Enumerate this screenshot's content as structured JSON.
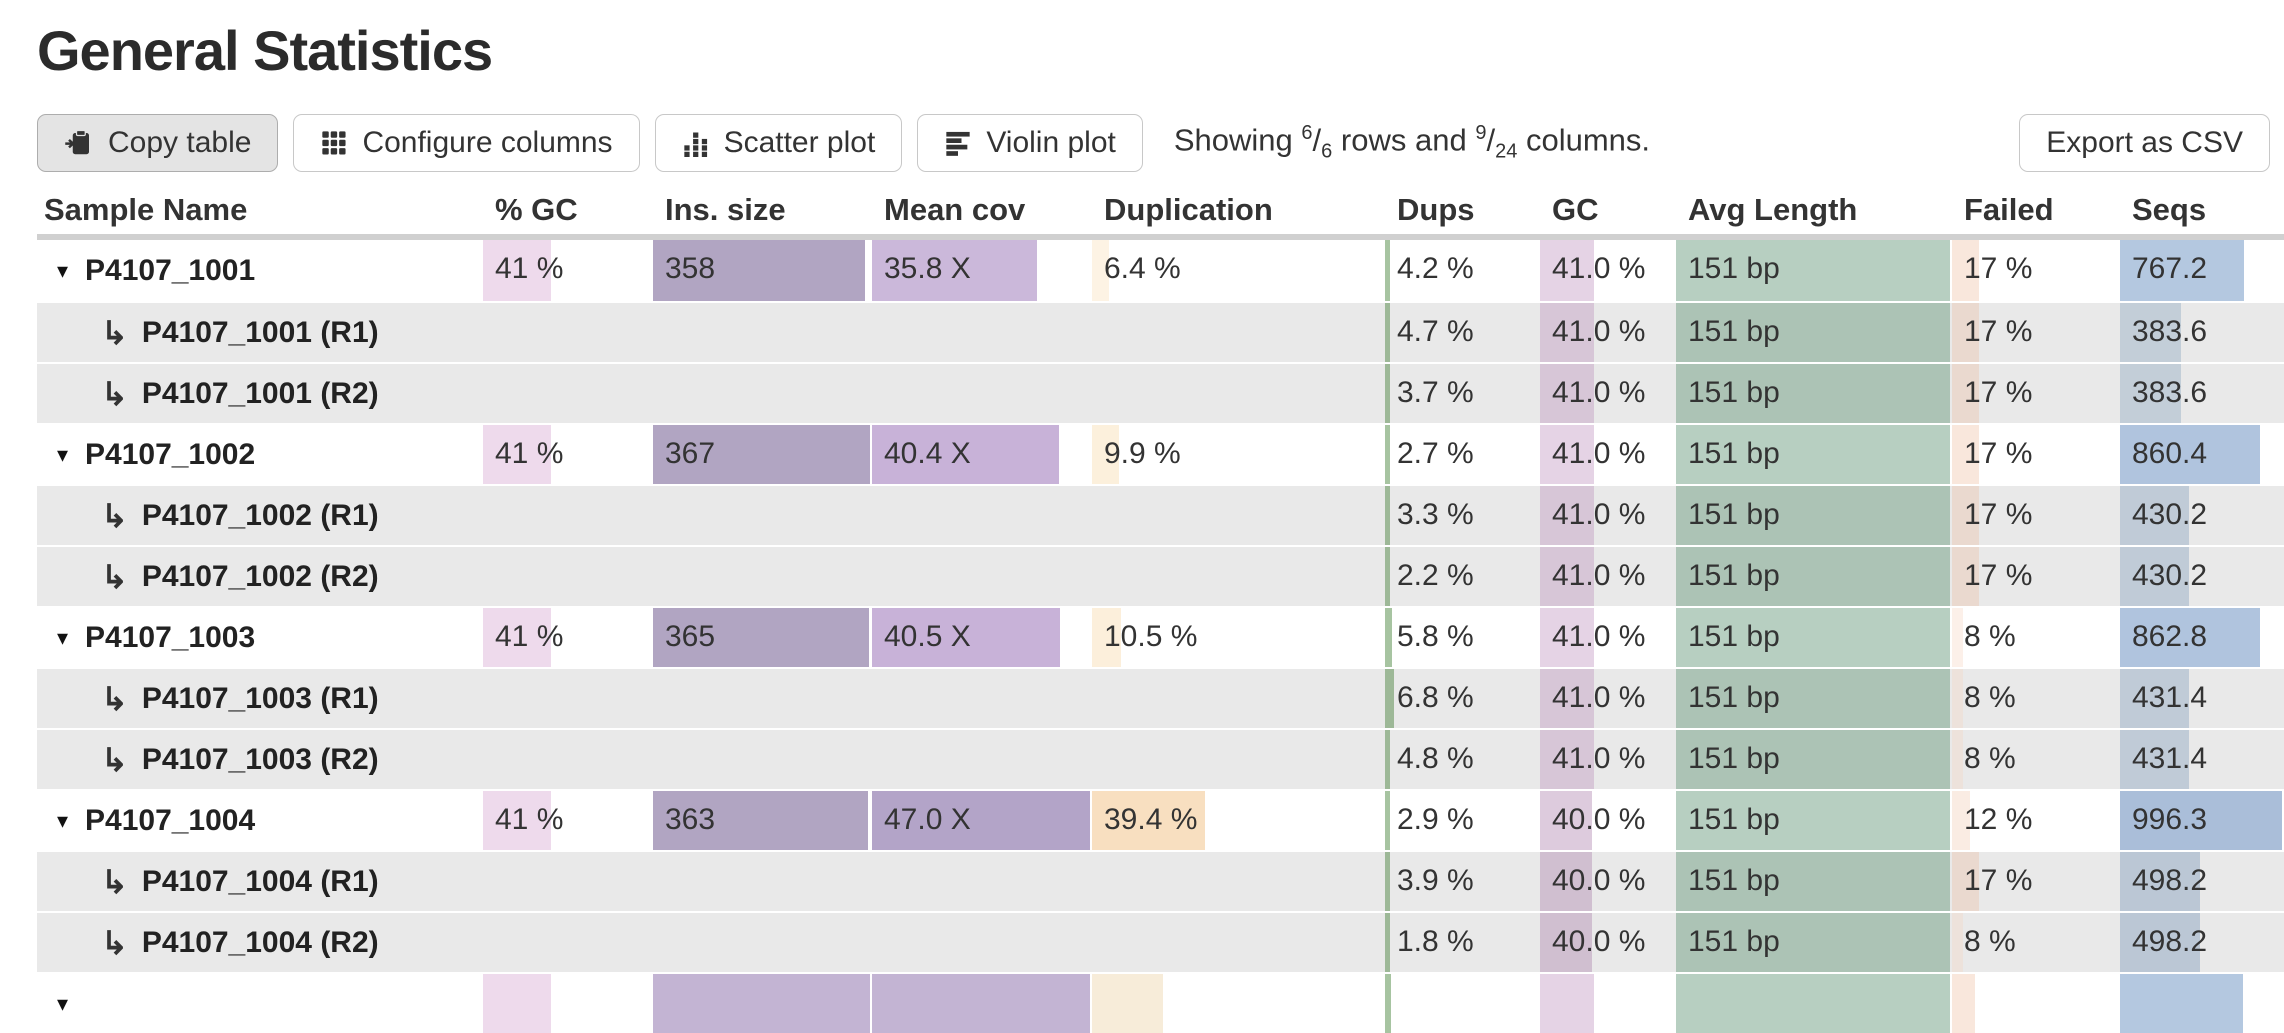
{
  "title": "General Statistics",
  "toolbar": {
    "copy_table": "Copy table",
    "configure_columns": "Configure columns",
    "scatter_plot": "Scatter plot",
    "violin_plot": "Violin plot",
    "export_csv": "Export as CSV",
    "showing": {
      "prefix": "Showing",
      "rows_num": "6",
      "slash1": "/",
      "rows_den": "6",
      "mid": "rows and",
      "cols_num": "9",
      "slash2": "/",
      "cols_den": "24",
      "suffix": "columns."
    }
  },
  "icons": {
    "copy": "clipboard-arrow-icon",
    "configure": "grid-3x3-icon",
    "scatter": "dot-columns-icon",
    "violin": "align-left-bars-icon",
    "expand_caret": "▾",
    "subrow_arrow": "↳"
  },
  "colors": {
    "row_alt_bg": "#e9e9e9",
    "header_divider": "#d0d0d0",
    "pct_gc_bar": "#eedaec",
    "ins_size_bar": "#b1a5c2",
    "mean_cov_bar": "#cbb8da",
    "duplication_bar": "#f8dfc0",
    "dups_bar": "#a7c4a1",
    "gc_bar": "#e5d3e5",
    "avg_length_bar": "#b7cfc1",
    "failed_bar": "#f9e7dc",
    "seqs_bar": "#b4c8e0"
  },
  "table": {
    "columns": [
      {
        "key": "sample",
        "label": "Sample Name"
      },
      {
        "key": "pct_gc",
        "label": "% GC"
      },
      {
        "key": "ins_size",
        "label": "Ins. size"
      },
      {
        "key": "mean_cov",
        "label": "Mean cov"
      },
      {
        "key": "duplication",
        "label": "Duplication"
      },
      {
        "key": "dups",
        "label": "Dups"
      },
      {
        "key": "gc",
        "label": "GC"
      },
      {
        "key": "avg_length",
        "label": "Avg Length"
      },
      {
        "key": "failed",
        "label": "Failed"
      },
      {
        "key": "seqs",
        "label": "Seqs"
      }
    ],
    "rows": [
      {
        "k": "main",
        "name": "P4107_1001",
        "cells": {
          "pct_gc": {
            "t": "41 %",
            "f": 0.41,
            "c": "#eedaec"
          },
          "ins_size": {
            "t": "358",
            "f": 0.975,
            "c": "#b1a5c2"
          },
          "mean_cov": {
            "t": "35.8 X",
            "f": 0.76,
            "c": "#cbb8da"
          },
          "duplication": {
            "t": "6.4 %",
            "f": 0.064,
            "c": "#fdf3e4"
          },
          "dups": {
            "t": "4.2 %",
            "f": 0.042,
            "c": "#a7c4a1"
          },
          "gc": {
            "t": "41.0 %",
            "f": 0.41,
            "c": "#e5d3e5"
          },
          "avg_length": {
            "t": "151 bp",
            "f": 1,
            "c": "#b7cfc1"
          },
          "failed": {
            "t": "17 %",
            "f": 0.17,
            "c": "#f9e7dc"
          },
          "seqs": {
            "t": "767.2",
            "f": 0.77,
            "c": "#b4c8e0"
          }
        }
      },
      {
        "k": "sub",
        "name": "P4107_1001 (R1)",
        "cells": {
          "dups": {
            "t": "4.7 %",
            "f": 0.047,
            "c": "#a7c4a1"
          },
          "gc": {
            "t": "41.0 %",
            "f": 0.41,
            "c": "#e5d3e5"
          },
          "avg_length": {
            "t": "151 bp",
            "f": 1,
            "c": "#b7cfc1"
          },
          "failed": {
            "t": "17 %",
            "f": 0.17,
            "c": "#f9e7dc"
          },
          "seqs": {
            "t": "383.6",
            "f": 0.385,
            "c": "#cfdbe6"
          }
        }
      },
      {
        "k": "sub",
        "name": "P4107_1001 (R2)",
        "cells": {
          "dups": {
            "t": "3.7 %",
            "f": 0.037,
            "c": "#a7c4a1"
          },
          "gc": {
            "t": "41.0 %",
            "f": 0.41,
            "c": "#e5d3e5"
          },
          "avg_length": {
            "t": "151 bp",
            "f": 1,
            "c": "#b7cfc1"
          },
          "failed": {
            "t": "17 %",
            "f": 0.17,
            "c": "#f9e7dc"
          },
          "seqs": {
            "t": "383.6",
            "f": 0.385,
            "c": "#cfdbe6"
          }
        }
      },
      {
        "k": "main",
        "name": "P4107_1002",
        "cells": {
          "pct_gc": {
            "t": "41 %",
            "f": 0.41,
            "c": "#eedaec"
          },
          "ins_size": {
            "t": "367",
            "f": 1,
            "c": "#b1a5c2"
          },
          "mean_cov": {
            "t": "40.4 X",
            "f": 0.86,
            "c": "#c8b2d8"
          },
          "duplication": {
            "t": "9.9 %",
            "f": 0.099,
            "c": "#fcf0dc"
          },
          "dups": {
            "t": "2.7 %",
            "f": 0.027,
            "c": "#a7c4a1"
          },
          "gc": {
            "t": "41.0 %",
            "f": 0.41,
            "c": "#e5d3e5"
          },
          "avg_length": {
            "t": "151 bp",
            "f": 1,
            "c": "#b7cfc1"
          },
          "failed": {
            "t": "17 %",
            "f": 0.17,
            "c": "#f9e7dc"
          },
          "seqs": {
            "t": "860.4",
            "f": 0.864,
            "c": "#b0c4de"
          }
        }
      },
      {
        "k": "sub",
        "name": "P4107_1002 (R1)",
        "cells": {
          "dups": {
            "t": "3.3 %",
            "f": 0.033,
            "c": "#a7c4a1"
          },
          "gc": {
            "t": "41.0 %",
            "f": 0.41,
            "c": "#e5d3e5"
          },
          "avg_length": {
            "t": "151 bp",
            "f": 1,
            "c": "#b7cfc1"
          },
          "failed": {
            "t": "17 %",
            "f": 0.17,
            "c": "#f9e7dc"
          },
          "seqs": {
            "t": "430.2",
            "f": 0.432,
            "c": "#ccd8e5"
          }
        }
      },
      {
        "k": "sub",
        "name": "P4107_1002 (R2)",
        "cells": {
          "dups": {
            "t": "2.2 %",
            "f": 0.022,
            "c": "#a7c4a1"
          },
          "gc": {
            "t": "41.0 %",
            "f": 0.41,
            "c": "#e5d3e5"
          },
          "avg_length": {
            "t": "151 bp",
            "f": 1,
            "c": "#b7cfc1"
          },
          "failed": {
            "t": "17 %",
            "f": 0.17,
            "c": "#f9e7dc"
          },
          "seqs": {
            "t": "430.2",
            "f": 0.432,
            "c": "#ccd8e5"
          }
        }
      },
      {
        "k": "main",
        "name": "P4107_1003",
        "cells": {
          "pct_gc": {
            "t": "41 %",
            "f": 0.41,
            "c": "#eedaec"
          },
          "ins_size": {
            "t": "365",
            "f": 0.995,
            "c": "#b1a5c2"
          },
          "mean_cov": {
            "t": "40.5 X",
            "f": 0.862,
            "c": "#c8b2d8"
          },
          "duplication": {
            "t": "10.5 %",
            "f": 0.105,
            "c": "#fcefdb"
          },
          "dups": {
            "t": "5.8 %",
            "f": 0.058,
            "c": "#a7c4a1"
          },
          "gc": {
            "t": "41.0 %",
            "f": 0.41,
            "c": "#e5d3e5"
          },
          "avg_length": {
            "t": "151 bp",
            "f": 1,
            "c": "#b7cfc1"
          },
          "failed": {
            "t": "8 %",
            "f": 0.08,
            "c": "#fcf0e9"
          },
          "seqs": {
            "t": "862.8",
            "f": 0.866,
            "c": "#b0c4de"
          }
        }
      },
      {
        "k": "sub",
        "name": "P4107_1003 (R1)",
        "cells": {
          "dups": {
            "t": "6.8 %",
            "f": 0.068,
            "c": "#a7c4a1"
          },
          "gc": {
            "t": "41.0 %",
            "f": 0.41,
            "c": "#e5d3e5"
          },
          "avg_length": {
            "t": "151 bp",
            "f": 1,
            "c": "#b7cfc1"
          },
          "failed": {
            "t": "8 %",
            "f": 0.08,
            "c": "#fcf0e9"
          },
          "seqs": {
            "t": "431.4",
            "f": 0.433,
            "c": "#ccd8e5"
          }
        }
      },
      {
        "k": "sub",
        "name": "P4107_1003 (R2)",
        "cells": {
          "dups": {
            "t": "4.8 %",
            "f": 0.048,
            "c": "#a7c4a1"
          },
          "gc": {
            "t": "41.0 %",
            "f": 0.41,
            "c": "#e5d3e5"
          },
          "avg_length": {
            "t": "151 bp",
            "f": 1,
            "c": "#b7cfc1"
          },
          "failed": {
            "t": "8 %",
            "f": 0.08,
            "c": "#fcf0e9"
          },
          "seqs": {
            "t": "431.4",
            "f": 0.433,
            "c": "#ccd8e5"
          }
        }
      },
      {
        "k": "main",
        "name": "P4107_1004",
        "cells": {
          "pct_gc": {
            "t": "41 %",
            "f": 0.41,
            "c": "#eedaec"
          },
          "ins_size": {
            "t": "363",
            "f": 0.989,
            "c": "#b1a5c2"
          },
          "mean_cov": {
            "t": "47.0 X",
            "f": 1,
            "c": "#b3a4c8"
          },
          "duplication": {
            "t": "39.4 %",
            "f": 0.394,
            "c": "#f8dfc0"
          },
          "dups": {
            "t": "2.9 %",
            "f": 0.029,
            "c": "#a7c4a1"
          },
          "gc": {
            "t": "40.0 %",
            "f": 0.4,
            "c": "#ddcbdd"
          },
          "avg_length": {
            "t": "151 bp",
            "f": 1,
            "c": "#b7cfc1"
          },
          "failed": {
            "t": "12 %",
            "f": 0.12,
            "c": "#faece3"
          },
          "seqs": {
            "t": "996.3",
            "f": 1,
            "c": "#aabed9"
          }
        }
      },
      {
        "k": "sub",
        "name": "P4107_1004 (R1)",
        "cells": {
          "dups": {
            "t": "3.9 %",
            "f": 0.039,
            "c": "#a7c4a1"
          },
          "gc": {
            "t": "40.0 %",
            "f": 0.4,
            "c": "#ddcbdd"
          },
          "avg_length": {
            "t": "151 bp",
            "f": 1,
            "c": "#b7cfc1"
          },
          "failed": {
            "t": "17 %",
            "f": 0.17,
            "c": "#f9e7dc"
          },
          "seqs": {
            "t": "498.2",
            "f": 0.5,
            "c": "#c7d4e3"
          }
        }
      },
      {
        "k": "sub",
        "name": "P4107_1004 (R2)",
        "cells": {
          "dups": {
            "t": "1.8 %",
            "f": 0.018,
            "c": "#a7c4a1"
          },
          "gc": {
            "t": "40.0 %",
            "f": 0.4,
            "c": "#ddcbdd"
          },
          "avg_length": {
            "t": "151 bp",
            "f": 1,
            "c": "#b7cfc1"
          },
          "failed": {
            "t": "8 %",
            "f": 0.08,
            "c": "#fcf0e9"
          },
          "seqs": {
            "t": "498.2",
            "f": 0.5,
            "c": "#c7d4e3"
          }
        }
      }
    ],
    "partial_row": {
      "k": "main",
      "name": "",
      "cells": {
        "pct_gc": {
          "f": 0.41,
          "c": "#eedaec"
        },
        "ins_size": {
          "f": 1,
          "c": "#c3b4d3"
        },
        "mean_cov": {
          "f": 1,
          "c": "#c3b4d3"
        },
        "duplication": {
          "f": 0.25,
          "c": "#f7ecd9"
        },
        "dups": {
          "f": 0.05,
          "c": "#a7c4a1"
        },
        "gc": {
          "f": 0.41,
          "c": "#e5d3e5"
        },
        "avg_length": {
          "f": 1,
          "c": "#b7cfc1"
        },
        "failed": {
          "f": 0.15,
          "c": "#f9e7dc"
        },
        "seqs": {
          "f": 0.76,
          "c": "#b4c8e0"
        }
      }
    }
  }
}
